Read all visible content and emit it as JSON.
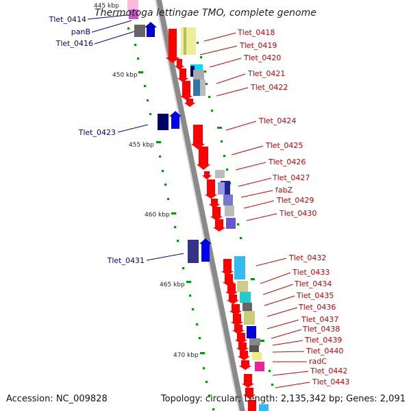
{
  "title": "Thermotoga lettingae TMO, complete genome",
  "footer": {
    "accession": "Accession: NC_009828",
    "summary": "Topology: circular; Length: 2,135,342 bp; Genes: 2,091"
  },
  "colors": {
    "backbone": "#8a8a8a",
    "forward_gene": "#ff0000",
    "reverse_gene": "#0000cc",
    "forward_label": "#cc0000",
    "reverse_label": "#000099",
    "tick": "#009900"
  },
  "kbp_marks": [
    "445 kbp",
    "450 kbp",
    "455 kbp",
    "460 kbp",
    "465 kbp",
    "470 kbp"
  ],
  "left_labels": [
    "Tlet_0414",
    "panB",
    "Tlet_0416",
    "Tlet_0423",
    "Tlet_0431"
  ],
  "right_labels": [
    "Tlet_0418",
    "Tlet_0419",
    "Tlet_0420",
    "Tlet_0421",
    "Tlet_0422",
    "Tlet_0424",
    "Tlet_0425",
    "Tlet_0426",
    "Tlet_0427",
    "fabZ",
    "Tlet_0429",
    "Tlet_0430",
    "Tlet_0432",
    "Tlet_0433",
    "Tlet_0434",
    "Tlet_0435",
    "Tlet_0436",
    "Tlet_0437",
    "Tlet_0438",
    "Tlet_0439",
    "Tlet_0440",
    "radC",
    "Tlet_0442",
    "Tlet_0443"
  ]
}
